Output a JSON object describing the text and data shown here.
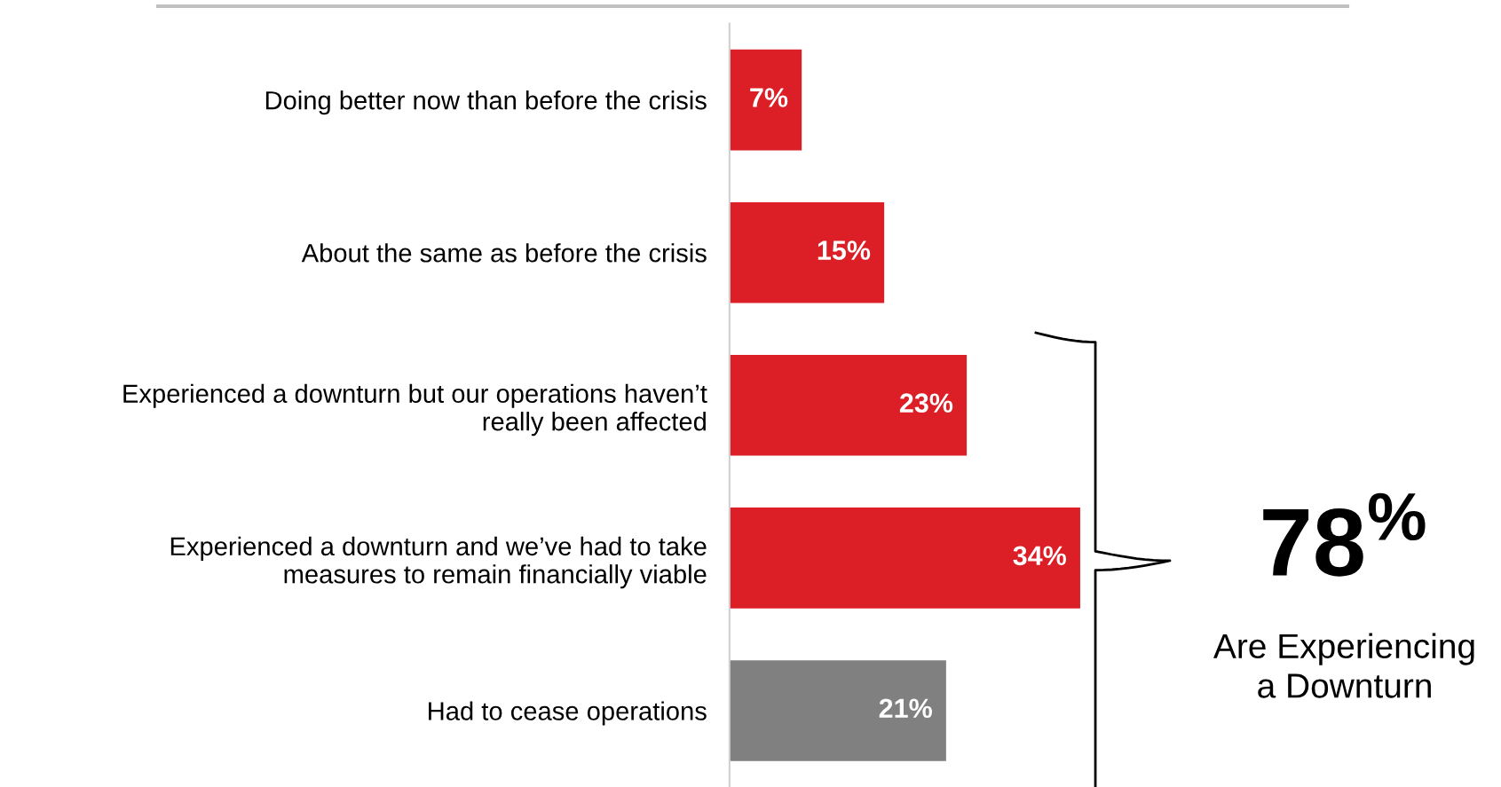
{
  "chart_data": {
    "type": "bar",
    "orientation": "horizontal",
    "categories": [
      "Doing better now than before the crisis",
      "About the same as before the crisis",
      "Experienced a downturn but our operations haven’t\nreally been affected",
      "Experienced a downturn and we’ve had to take\nmeasures to remain financially viable",
      "Had to cease operations"
    ],
    "values": [
      7,
      15,
      23,
      34,
      21
    ],
    "colors": [
      "#dc1f26",
      "#dc1f26",
      "#dc1f26",
      "#dc1f26",
      "#808080"
    ],
    "value_labels": [
      "7%",
      "15%",
      "23%",
      "34%",
      "21%"
    ],
    "grid": false,
    "legend": false,
    "tick_labels": "y",
    "annotations": [
      "78$^{%}$",
      "Are Experiencing\na Downturn"
    ]
  }
}
